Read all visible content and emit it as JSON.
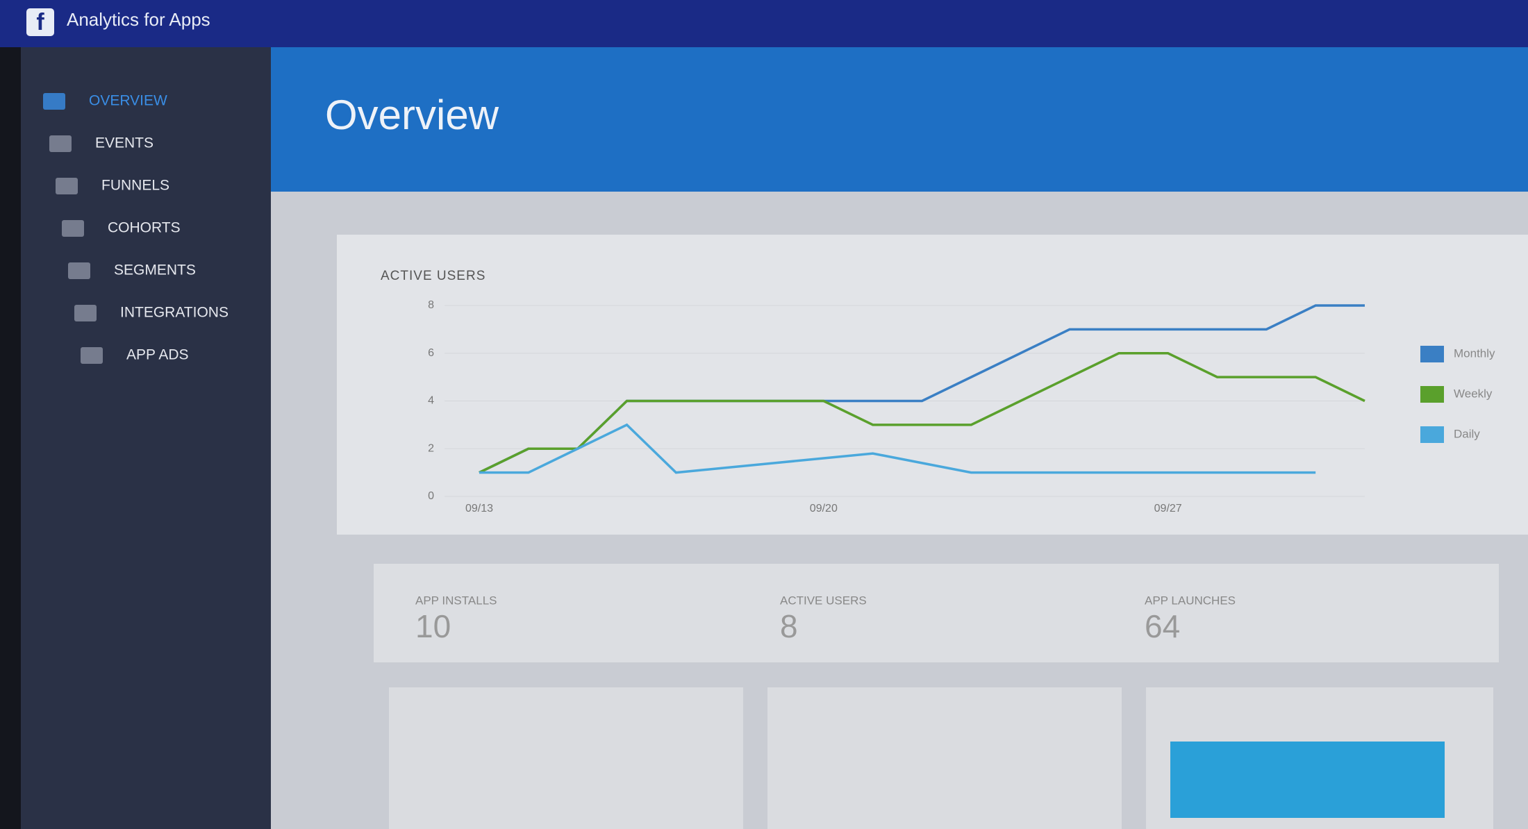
{
  "header": {
    "title": "Analytics for Apps"
  },
  "nav": [
    "OVERVIEW",
    "EVENTS",
    "FUNNELS",
    "COHORTS",
    "SEGMENTS",
    "INTEGRATIONS",
    "APP ADS"
  ],
  "page_title": "Overview",
  "chart_data": {
    "type": "line",
    "title": "ACTIVE USERS",
    "categories": [
      "09/13",
      null,
      null,
      null,
      null,
      null,
      null,
      "09/20",
      null,
      null,
      null,
      null,
      null,
      null,
      "09/27",
      null,
      null,
      null,
      null
    ],
    "series": [
      {
        "name": "Monthly",
        "color": "#3a7fc4",
        "values": [
          1,
          2,
          2,
          4,
          4,
          4,
          4,
          4,
          4,
          4,
          5,
          6,
          7,
          7,
          7,
          7,
          7,
          8,
          8
        ]
      },
      {
        "name": "Weekly",
        "color": "#5aa02c",
        "values": [
          1,
          2,
          2,
          4,
          4,
          4,
          4,
          4,
          3,
          3,
          3,
          4,
          5,
          6,
          6,
          5,
          5,
          5,
          4
        ]
      },
      {
        "name": "Daily",
        "color": "#4aa8dc",
        "values": [
          1,
          1,
          2,
          3,
          1,
          1.2,
          1.4,
          1.6,
          1.8,
          1.4,
          1,
          1,
          1,
          1,
          1,
          1,
          1,
          1,
          null
        ]
      }
    ],
    "ylim": [
      0,
      8
    ],
    "yticks": [
      0,
      2,
      4,
      6,
      8
    ],
    "grid": true,
    "legend": "right"
  },
  "stats": [
    {
      "label": "APP INSTALLS",
      "value": 10
    },
    {
      "label": "ACTIVE USERS",
      "value": 8
    },
    {
      "label": "APP LAUNCHES",
      "value": 64
    }
  ]
}
